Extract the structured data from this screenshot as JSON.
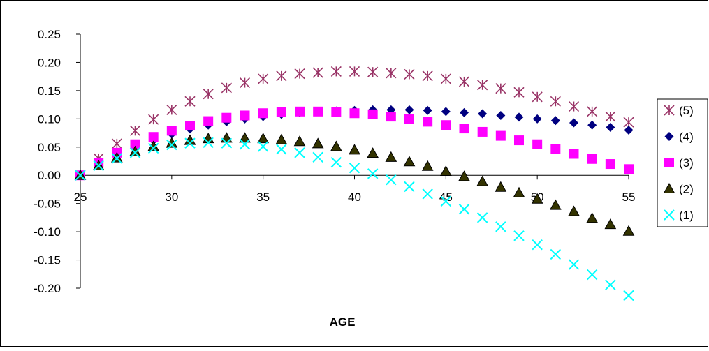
{
  "chart_data": {
    "type": "scatter",
    "title": "",
    "xlabel": "AGE",
    "ylabel": "",
    "xlim": [
      25,
      55
    ],
    "ylim": [
      -0.2,
      0.25
    ],
    "x_ticks": [
      "25",
      "30",
      "35",
      "40",
      "45",
      "50",
      "55"
    ],
    "y_ticks": [
      "0.25",
      "0.20",
      "0.15",
      "0.10",
      "0.05",
      "0.00",
      "-0.05",
      "-0.10",
      "-0.15",
      "-0.20"
    ],
    "grid": false,
    "legend_position": "right",
    "x": [
      25,
      26,
      27,
      28,
      29,
      30,
      31,
      32,
      33,
      34,
      35,
      36,
      37,
      38,
      39,
      40,
      41,
      42,
      43,
      44,
      45,
      46,
      47,
      48,
      49,
      50,
      51,
      52,
      53,
      54,
      55
    ],
    "series": [
      {
        "name": "(5)",
        "marker": "asterisk",
        "color": "#993366",
        "values": [
          0.0,
          0.03,
          0.056,
          0.079,
          0.099,
          0.116,
          0.131,
          0.144,
          0.155,
          0.164,
          0.171,
          0.176,
          0.18,
          0.182,
          0.184,
          0.184,
          0.183,
          0.181,
          0.179,
          0.176,
          0.171,
          0.166,
          0.16,
          0.154,
          0.147,
          0.139,
          0.131,
          0.122,
          0.113,
          0.104,
          0.094
        ]
      },
      {
        "name": "(4)",
        "marker": "diamond",
        "color": "#000080",
        "values": [
          0.0,
          0.02,
          0.036,
          0.05,
          0.062,
          0.073,
          0.082,
          0.089,
          0.095,
          0.1,
          0.104,
          0.108,
          0.111,
          0.113,
          0.114,
          0.115,
          0.116,
          0.116,
          0.116,
          0.115,
          0.113,
          0.111,
          0.109,
          0.106,
          0.103,
          0.1,
          0.097,
          0.093,
          0.089,
          0.085,
          0.08
        ]
      },
      {
        "name": "(3)",
        "marker": "square",
        "color": "#FF00FF",
        "values": [
          0.0,
          0.022,
          0.04,
          0.055,
          0.068,
          0.079,
          0.088,
          0.096,
          0.102,
          0.106,
          0.11,
          0.112,
          0.113,
          0.113,
          0.112,
          0.11,
          0.108,
          0.104,
          0.1,
          0.095,
          0.089,
          0.083,
          0.077,
          0.07,
          0.062,
          0.055,
          0.047,
          0.038,
          0.029,
          0.02,
          0.011
        ]
      },
      {
        "name": "(2)",
        "marker": "triangle",
        "color": "#333300",
        "values": [
          0.0,
          0.017,
          0.031,
          0.042,
          0.051,
          0.057,
          0.062,
          0.065,
          0.066,
          0.066,
          0.065,
          0.063,
          0.06,
          0.056,
          0.051,
          0.045,
          0.039,
          0.032,
          0.024,
          0.016,
          0.007,
          -0.002,
          -0.011,
          -0.021,
          -0.031,
          -0.042,
          -0.053,
          -0.064,
          -0.076,
          -0.087,
          -0.099
        ]
      },
      {
        "name": "(1)",
        "marker": "x",
        "color": "#00FFFF",
        "values": [
          0.0,
          0.017,
          0.03,
          0.04,
          0.048,
          0.054,
          0.057,
          0.058,
          0.057,
          0.055,
          0.051,
          0.046,
          0.04,
          0.032,
          0.023,
          0.013,
          0.003,
          -0.008,
          -0.02,
          -0.033,
          -0.046,
          -0.06,
          -0.075,
          -0.091,
          -0.107,
          -0.123,
          -0.14,
          -0.158,
          -0.176,
          -0.194,
          -0.213
        ]
      }
    ],
    "legend_order": [
      "(5)",
      "(4)",
      "(3)",
      "(2)",
      "(1)"
    ]
  }
}
